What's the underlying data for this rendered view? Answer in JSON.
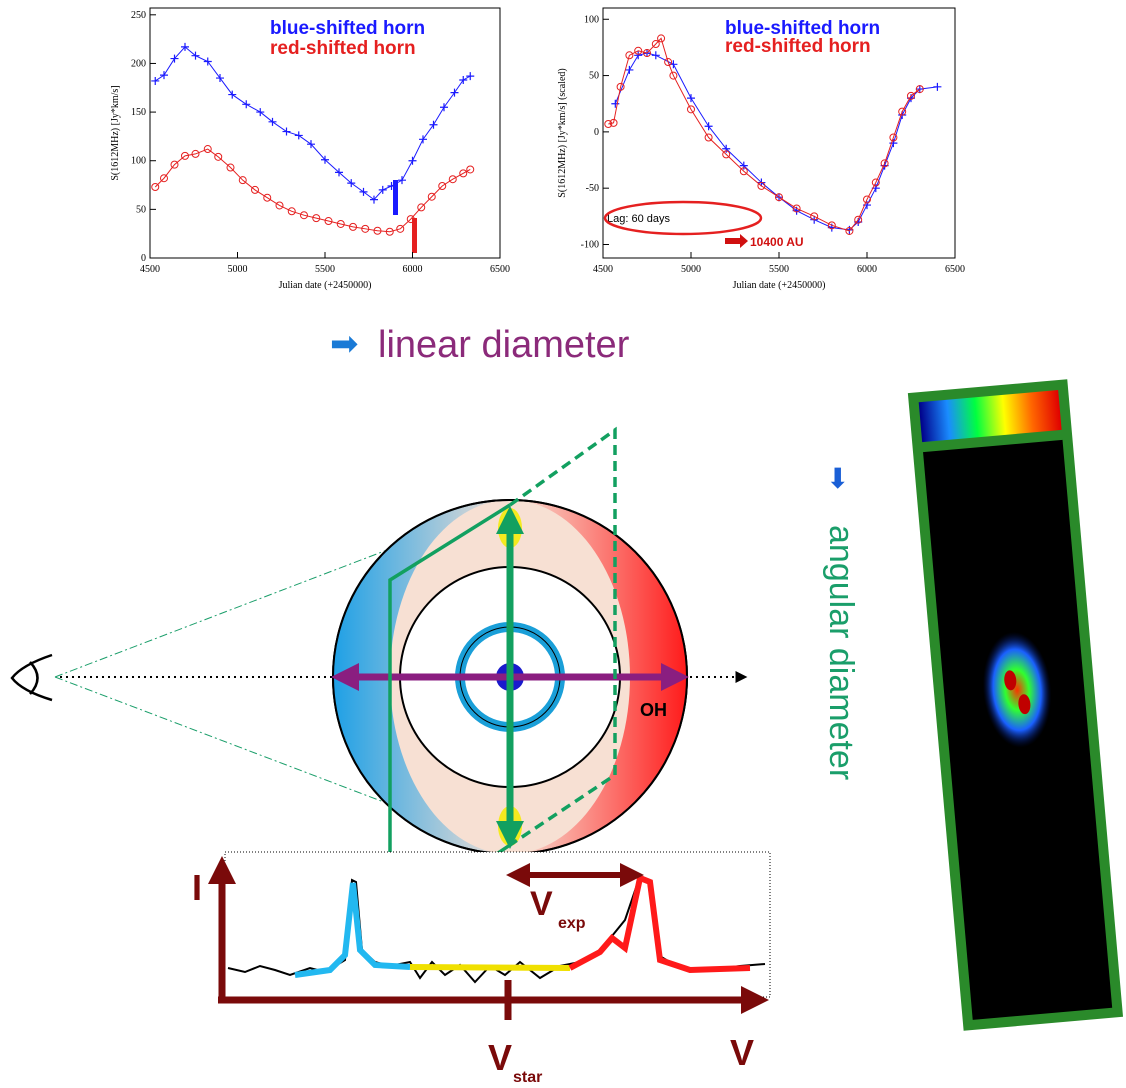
{
  "chart_data": [
    {
      "type": "line",
      "xlabel": "Julian date (+2450000)",
      "ylabel": "S(1612MHz) [Jy*km/s]",
      "xlim": [
        4500,
        6500
      ],
      "ylim": [
        0,
        257
      ],
      "xticks": [
        4500,
        5000,
        5500,
        6000,
        6500
      ],
      "yticks": [
        0,
        50,
        100,
        150,
        200,
        250
      ],
      "series": [
        {
          "name": "blue-shifted horn",
          "color": "#1a1aff",
          "marker": "plus",
          "x": [
            4530,
            4580,
            4640,
            4700,
            4760,
            4830,
            4900,
            4970,
            5050,
            5130,
            5200,
            5280,
            5350,
            5420,
            5500,
            5580,
            5650,
            5720,
            5780,
            5830,
            5880,
            5940,
            6000,
            6060,
            6120,
            6180,
            6240,
            6290,
            6330
          ],
          "values": [
            182,
            188,
            205,
            217,
            208,
            202,
            185,
            168,
            158,
            150,
            140,
            130,
            126,
            117,
            101,
            88,
            77,
            68,
            60,
            70,
            74,
            80,
            100,
            122,
            137,
            155,
            170,
            183,
            187
          ]
        },
        {
          "name": "red-shifted horn",
          "color": "#e52020",
          "marker": "circle",
          "x": [
            4530,
            4580,
            4640,
            4700,
            4760,
            4830,
            4890,
            4960,
            5030,
            5100,
            5170,
            5240,
            5310,
            5380,
            5450,
            5520,
            5590,
            5660,
            5730,
            5800,
            5870,
            5930,
            5990,
            6050,
            6110,
            6170,
            6230,
            6290,
            6330
          ],
          "values": [
            73,
            82,
            96,
            105,
            107,
            112,
            104,
            93,
            80,
            70,
            62,
            54,
            48,
            44,
            41,
            38,
            35,
            32,
            30,
            28,
            27,
            30,
            40,
            52,
            63,
            74,
            81,
            87,
            91
          ]
        }
      ]
    },
    {
      "type": "line",
      "xlabel": "Julian date (+2450000)",
      "ylabel": "S(1612MHz) [Jy*km/s] (scaled)",
      "xlim": [
        4500,
        6500
      ],
      "ylim": [
        -112,
        110
      ],
      "xticks": [
        4500,
        5000,
        5500,
        6000,
        6500
      ],
      "yticks": [
        -100,
        -50,
        0,
        50,
        100
      ],
      "annotations": [
        "Lag: 60 days",
        "10400 AU"
      ],
      "series": [
        {
          "name": "blue-shifted horn",
          "color": "#1a1aff",
          "marker": "plus",
          "x": [
            4570,
            4650,
            4700,
            4750,
            4800,
            4900,
            5000,
            5100,
            5200,
            5300,
            5400,
            5500,
            5600,
            5700,
            5800,
            5900,
            5950,
            6000,
            6050,
            6100,
            6150,
            6200,
            6250,
            6300,
            6400
          ],
          "values": [
            25,
            55,
            68,
            70,
            68,
            60,
            30,
            5,
            -15,
            -30,
            -45,
            -58,
            -70,
            -78,
            -85,
            -87,
            -80,
            -65,
            -50,
            -30,
            -10,
            15,
            30,
            38,
            40
          ]
        },
        {
          "name": "red-shifted horn",
          "color": "#e52020",
          "marker": "circle",
          "x": [
            4530,
            4560,
            4600,
            4650,
            4700,
            4750,
            4800,
            4830,
            4870,
            4900,
            5000,
            5100,
            5200,
            5300,
            5400,
            5500,
            5600,
            5700,
            5800,
            5900,
            5950,
            6000,
            6050,
            6100,
            6150,
            6200,
            6250,
            6300
          ],
          "values": [
            7,
            8,
            40,
            68,
            72,
            70,
            78,
            83,
            62,
            50,
            20,
            -5,
            -20,
            -35,
            -48,
            -58,
            -68,
            -75,
            -83,
            -88,
            -78,
            -60,
            -45,
            -28,
            -5,
            18,
            32,
            38
          ]
        }
      ]
    }
  ],
  "diagram": {
    "linear": "linear diameter",
    "angular": "angular diameter",
    "oh": "OH",
    "intensity": "I",
    "velocity": "V",
    "vexp": "V",
    "vexp_sub": "exp",
    "vstar": "V",
    "vstar_sub": "star"
  }
}
